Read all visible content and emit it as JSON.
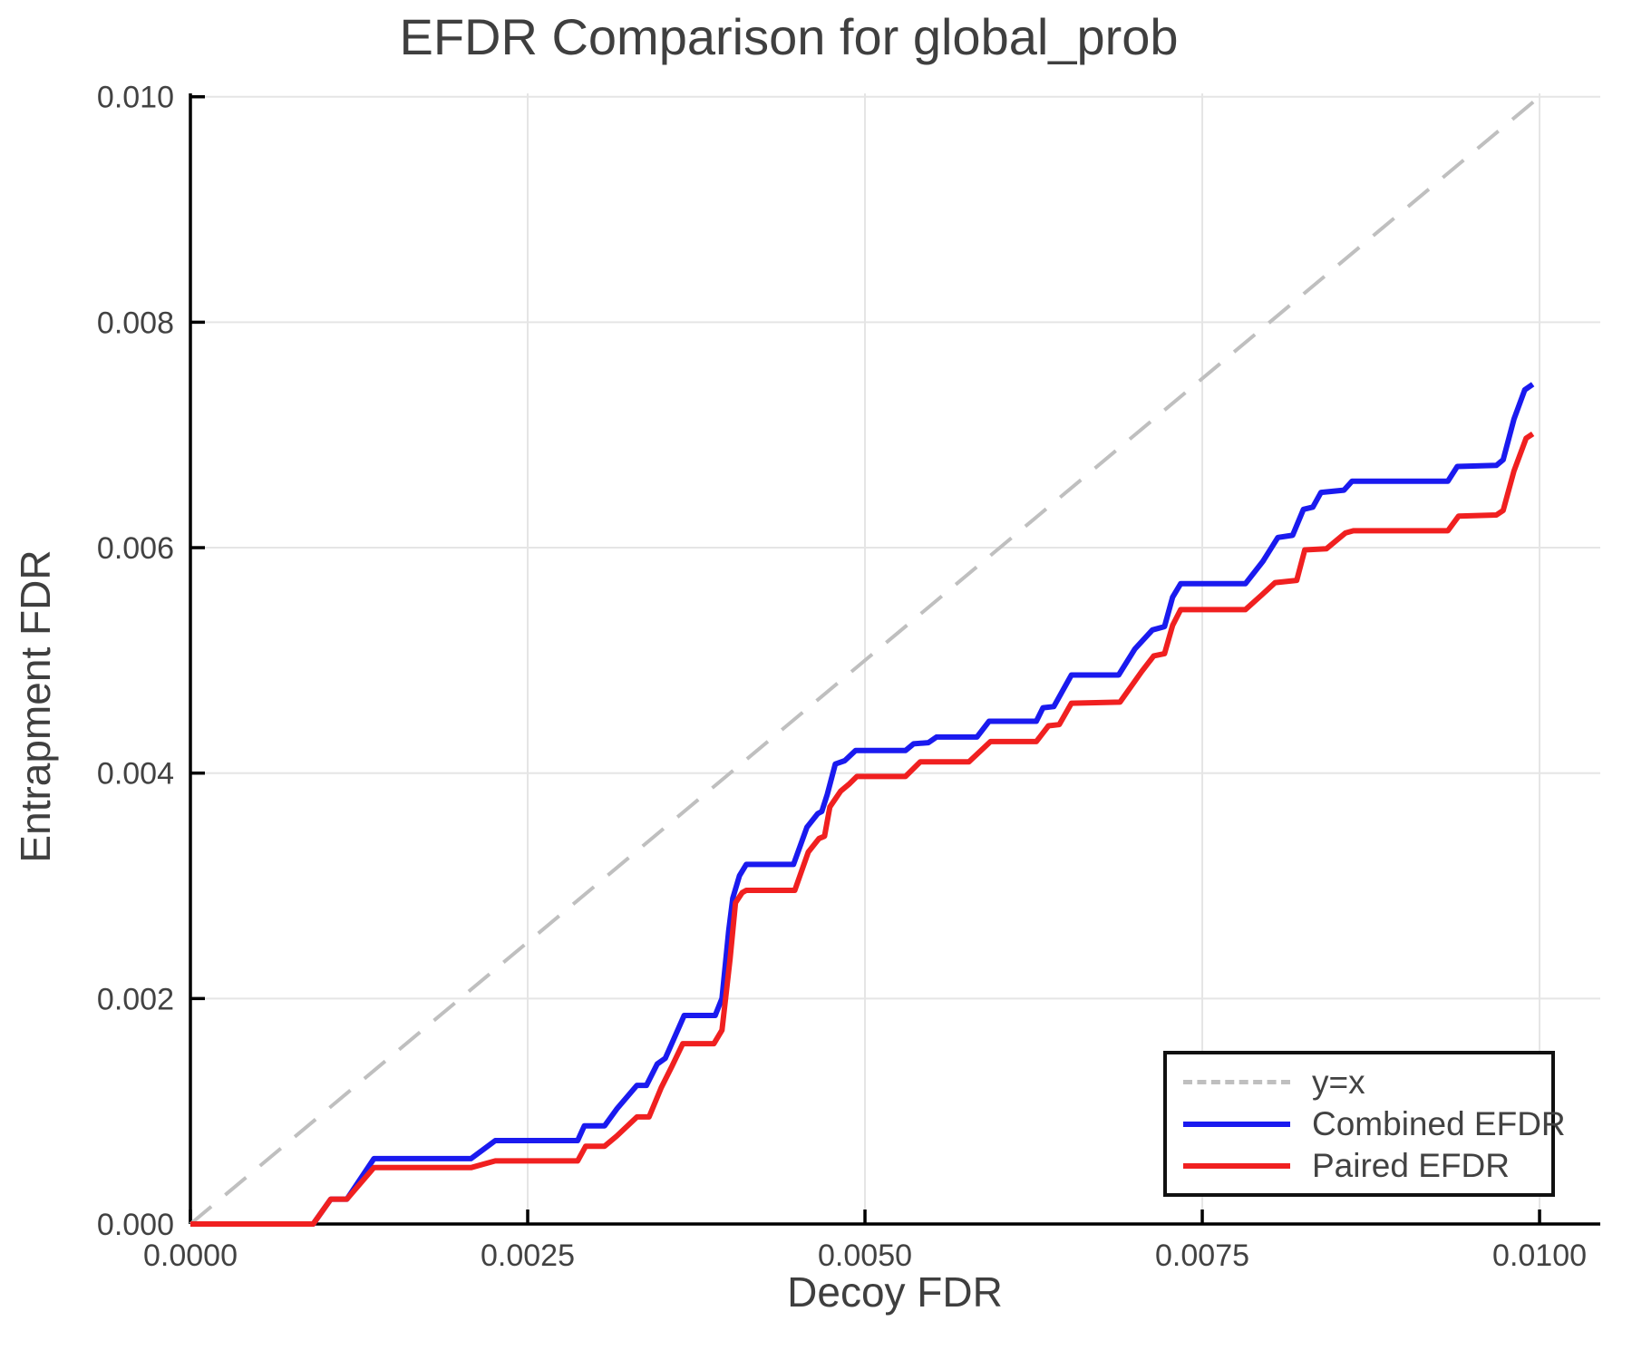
{
  "chart_data": {
    "type": "line",
    "title": "EFDR Comparison for global_prob",
    "xlabel": "Decoy FDR",
    "ylabel": "Entrapment FDR",
    "xlim": [
      0,
      0.01045
    ],
    "ylim": [
      0,
      0.01003
    ],
    "grid": true,
    "legend_position": "lower right",
    "xticks": [
      {
        "v": 0.0,
        "label": "0.0000"
      },
      {
        "v": 0.0025,
        "label": "0.0025"
      },
      {
        "v": 0.005,
        "label": "0.0050"
      },
      {
        "v": 0.0075,
        "label": "0.0075"
      },
      {
        "v": 0.01,
        "label": "0.0100"
      }
    ],
    "yticks": [
      {
        "v": 0.0,
        "label": "0.000"
      },
      {
        "v": 0.002,
        "label": "0.002"
      },
      {
        "v": 0.004,
        "label": "0.004"
      },
      {
        "v": 0.006,
        "label": "0.006"
      },
      {
        "v": 0.008,
        "label": "0.008"
      },
      {
        "v": 0.01,
        "label": "0.010"
      }
    ],
    "colors": {
      "identity": "#bfbfbf",
      "combined": "#1a1aef",
      "paired": "#f02020",
      "grid": "#e5e5e5",
      "spine": "#000000",
      "text": "#424242"
    },
    "series": [
      {
        "name": "y=x",
        "id": "yx",
        "color": "#bfbfbf",
        "style": "dashed",
        "points": [
          [
            0,
            0
          ],
          [
            0.01,
            0.01
          ]
        ]
      },
      {
        "name": "Combined EFDR",
        "id": "combined-efdr",
        "color": "#1a1aef",
        "style": "solid",
        "points": [
          [
            0,
            0
          ],
          [
            0.00091,
            0
          ],
          [
            0.00104,
            0.00022
          ],
          [
            0.00116,
            0.00022
          ],
          [
            0.00136,
            0.00058
          ],
          [
            0.00208,
            0.00058
          ],
          [
            0.00226,
            0.00074
          ],
          [
            0.00287,
            0.00074
          ],
          [
            0.00292,
            0.00087
          ],
          [
            0.00307,
            0.00087
          ],
          [
            0.00316,
            0.00102
          ],
          [
            0.00331,
            0.00123
          ],
          [
            0.00338,
            0.00123
          ],
          [
            0.00346,
            0.00142
          ],
          [
            0.00352,
            0.00147
          ],
          [
            0.00366,
            0.00185
          ],
          [
            0.00389,
            0.00185
          ],
          [
            0.00394,
            0.002
          ],
          [
            0.00399,
            0.0026
          ],
          [
            0.00402,
            0.00289
          ],
          [
            0.00407,
            0.00309
          ],
          [
            0.00412,
            0.00319
          ],
          [
            0.00447,
            0.00319
          ],
          [
            0.00457,
            0.00352
          ],
          [
            0.00465,
            0.00364
          ],
          [
            0.00468,
            0.00366
          ],
          [
            0.00472,
            0.00381
          ],
          [
            0.00478,
            0.00408
          ],
          [
            0.00485,
            0.00411
          ],
          [
            0.00493,
            0.0042
          ],
          [
            0.0053,
            0.0042
          ],
          [
            0.00536,
            0.00426
          ],
          [
            0.00547,
            0.00427
          ],
          [
            0.00553,
            0.00432
          ],
          [
            0.00583,
            0.00432
          ],
          [
            0.00592,
            0.00446
          ],
          [
            0.00627,
            0.00446
          ],
          [
            0.00632,
            0.00458
          ],
          [
            0.0064,
            0.00459
          ],
          [
            0.00653,
            0.00487
          ],
          [
            0.00688,
            0.00487
          ],
          [
            0.007,
            0.0051
          ],
          [
            0.00713,
            0.00527
          ],
          [
            0.00722,
            0.0053
          ],
          [
            0.00728,
            0.00556
          ],
          [
            0.00734,
            0.00568
          ],
          [
            0.00782,
            0.00568
          ],
          [
            0.00795,
            0.00588
          ],
          [
            0.00806,
            0.00609
          ],
          [
            0.00817,
            0.00611
          ],
          [
            0.00825,
            0.00634
          ],
          [
            0.00832,
            0.00636
          ],
          [
            0.00838,
            0.00649
          ],
          [
            0.00855,
            0.00651
          ],
          [
            0.00861,
            0.00659
          ],
          [
            0.00932,
            0.00659
          ],
          [
            0.00939,
            0.00672
          ],
          [
            0.00968,
            0.00673
          ],
          [
            0.00973,
            0.00678
          ],
          [
            0.00981,
            0.00714
          ],
          [
            0.00989,
            0.0074
          ],
          [
            0.00995,
            0.00745
          ]
        ]
      },
      {
        "name": "Paired EFDR",
        "id": "paired-efdr",
        "color": "#f02020",
        "style": "solid",
        "points": [
          [
            0,
            0
          ],
          [
            0.00091,
            0
          ],
          [
            0.00104,
            0.00022
          ],
          [
            0.00116,
            0.00022
          ],
          [
            0.00136,
            0.0005
          ],
          [
            0.00208,
            0.0005
          ],
          [
            0.00226,
            0.00056
          ],
          [
            0.00287,
            0.00056
          ],
          [
            0.00293,
            0.00069
          ],
          [
            0.00307,
            0.00069
          ],
          [
            0.00316,
            0.00078
          ],
          [
            0.00331,
            0.00095
          ],
          [
            0.0034,
            0.00095
          ],
          [
            0.00349,
            0.00121
          ],
          [
            0.00357,
            0.0014
          ],
          [
            0.00365,
            0.0016
          ],
          [
            0.00388,
            0.0016
          ],
          [
            0.00394,
            0.00172
          ],
          [
            0.004,
            0.00235
          ],
          [
            0.00404,
            0.00285
          ],
          [
            0.00409,
            0.00294
          ],
          [
            0.00412,
            0.00296
          ],
          [
            0.00448,
            0.00296
          ],
          [
            0.00458,
            0.0033
          ],
          [
            0.00466,
            0.00342
          ],
          [
            0.0047,
            0.00344
          ],
          [
            0.00474,
            0.0037
          ],
          [
            0.00482,
            0.00384
          ],
          [
            0.00488,
            0.0039
          ],
          [
            0.00494,
            0.00397
          ],
          [
            0.0053,
            0.00397
          ],
          [
            0.00541,
            0.0041
          ],
          [
            0.00577,
            0.0041
          ],
          [
            0.00593,
            0.00428
          ],
          [
            0.00627,
            0.00428
          ],
          [
            0.00636,
            0.00442
          ],
          [
            0.00644,
            0.00443
          ],
          [
            0.00653,
            0.00462
          ],
          [
            0.00689,
            0.00463
          ],
          [
            0.00705,
            0.0049
          ],
          [
            0.00714,
            0.00504
          ],
          [
            0.00722,
            0.00506
          ],
          [
            0.00728,
            0.00531
          ],
          [
            0.00734,
            0.00545
          ],
          [
            0.00782,
            0.00545
          ],
          [
            0.00794,
            0.00558
          ],
          [
            0.00804,
            0.00569
          ],
          [
            0.0082,
            0.00571
          ],
          [
            0.00826,
            0.00598
          ],
          [
            0.00842,
            0.00599
          ],
          [
            0.00848,
            0.00605
          ],
          [
            0.00856,
            0.00613
          ],
          [
            0.00862,
            0.00615
          ],
          [
            0.00932,
            0.00615
          ],
          [
            0.0094,
            0.00628
          ],
          [
            0.00968,
            0.00629
          ],
          [
            0.00973,
            0.00633
          ],
          [
            0.00981,
            0.00668
          ],
          [
            0.0099,
            0.00697
          ],
          [
            0.00995,
            0.00701
          ]
        ]
      }
    ]
  }
}
